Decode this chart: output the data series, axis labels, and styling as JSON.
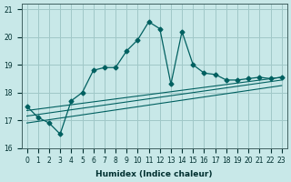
{
  "xlabel": "Humidex (Indice chaleur)",
  "ylabel": "",
  "background_color": "#c8e8e8",
  "grid_color": "#a0c8c8",
  "line_color": "#006060",
  "xlim": [
    -0.5,
    23.5
  ],
  "ylim": [
    16,
    21.2
  ],
  "yticks": [
    16,
    17,
    18,
    19,
    20,
    21
  ],
  "xtick_labels": [
    "0",
    "1",
    "2",
    "3",
    "4",
    "5",
    "6",
    "7",
    "8",
    "9",
    "10",
    "11",
    "12",
    "13",
    "14",
    "15",
    "16",
    "17",
    "18",
    "19",
    "20",
    "21",
    "22",
    "23"
  ],
  "main_series": [
    17.5,
    17.1,
    16.9,
    16.5,
    17.7,
    18.0,
    18.8,
    18.9,
    18.9,
    19.5,
    19.9,
    20.55,
    20.3,
    18.3,
    20.2,
    19.0,
    18.7,
    18.65,
    18.45,
    18.45,
    18.5,
    18.55,
    18.5,
    18.55
  ],
  "line1": [
    17.5,
    17.1,
    16.9,
    16.5,
    17.7,
    18.0,
    18.8,
    18.9,
    18.9,
    19.5,
    19.9,
    20.55,
    20.3,
    18.3,
    20.2,
    19.0,
    18.7,
    18.65,
    18.45,
    18.45,
    18.5,
    18.55,
    18.5,
    18.55
  ],
  "reg_line1_x": [
    0,
    23
  ],
  "reg_line1_y": [
    17.35,
    18.55
  ],
  "reg_line2_x": [
    0,
    23
  ],
  "reg_line2_y": [
    17.15,
    18.45
  ],
  "reg_line3_x": [
    0,
    23
  ],
  "reg_line3_y": [
    16.9,
    18.25
  ]
}
